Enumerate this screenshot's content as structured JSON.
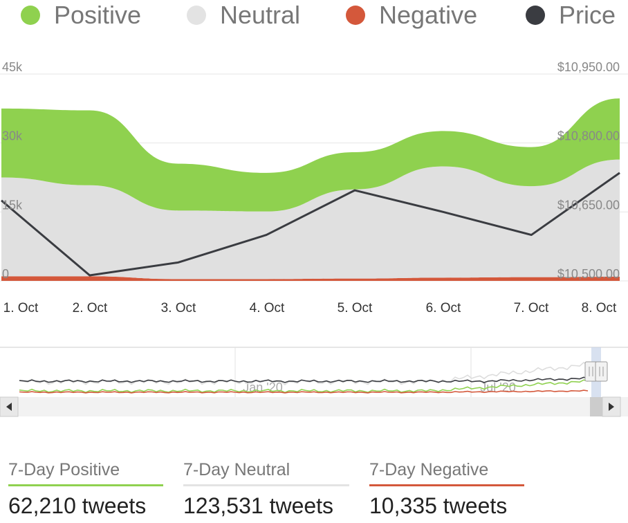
{
  "legend": [
    {
      "label": "Positive",
      "color": "#8fd14f"
    },
    {
      "label": "Neutral",
      "color": "#e3e3e3"
    },
    {
      "label": "Negative",
      "color": "#d4583b"
    },
    {
      "label": "Price",
      "color": "#3a3c41"
    }
  ],
  "chart_data": {
    "type": "area",
    "stacked": true,
    "categories": [
      "1. Oct",
      "2. Oct",
      "3. Oct",
      "4. Oct",
      "5. Oct",
      "6. Oct",
      "7. Oct",
      "8. Oct"
    ],
    "left_axis": {
      "ticks": [
        "0",
        "15k",
        "30k",
        "45k"
      ],
      "range": [
        0,
        45000
      ]
    },
    "right_axis": {
      "ticks": [
        "$10,500.00",
        "$10,650.00",
        "$10,800.00",
        "$10,950.00"
      ],
      "range": [
        10500,
        10950
      ]
    },
    "series": [
      {
        "name": "Negative",
        "type": "area",
        "axis": "left",
        "color": "#d4583b",
        "values": [
          1000,
          1000,
          400,
          400,
          500,
          700,
          800,
          900
        ]
      },
      {
        "name": "Neutral",
        "type": "area",
        "axis": "left",
        "color": "#e0e0e0",
        "values": [
          21500,
          19800,
          14900,
          14700,
          19400,
          24200,
          19800,
          25500
        ]
      },
      {
        "name": "Positive",
        "type": "area",
        "axis": "left",
        "color": "#8fd14f",
        "values": [
          15000,
          16300,
          10200,
          8400,
          8100,
          7700,
          8500,
          13300
        ]
      },
      {
        "name": "Price",
        "type": "line",
        "axis": "right",
        "color": "#3a3c41",
        "values": [
          10675,
          10512,
          10540,
          10600,
          10697,
          10650,
          10600,
          10735
        ]
      }
    ],
    "navigator": {
      "labels": [
        "Jan '20",
        "Jul '20"
      ]
    },
    "grid": true
  },
  "stats": [
    {
      "title": "7-Day Positive",
      "value": "62,210 tweets",
      "color": "#8fd14f"
    },
    {
      "title": "7-Day Neutral",
      "value": "123,531 tweets",
      "color": "#e3e3e3"
    },
    {
      "title": "7-Day Negative",
      "value": "10,335 tweets",
      "color": "#d4583b"
    }
  ]
}
